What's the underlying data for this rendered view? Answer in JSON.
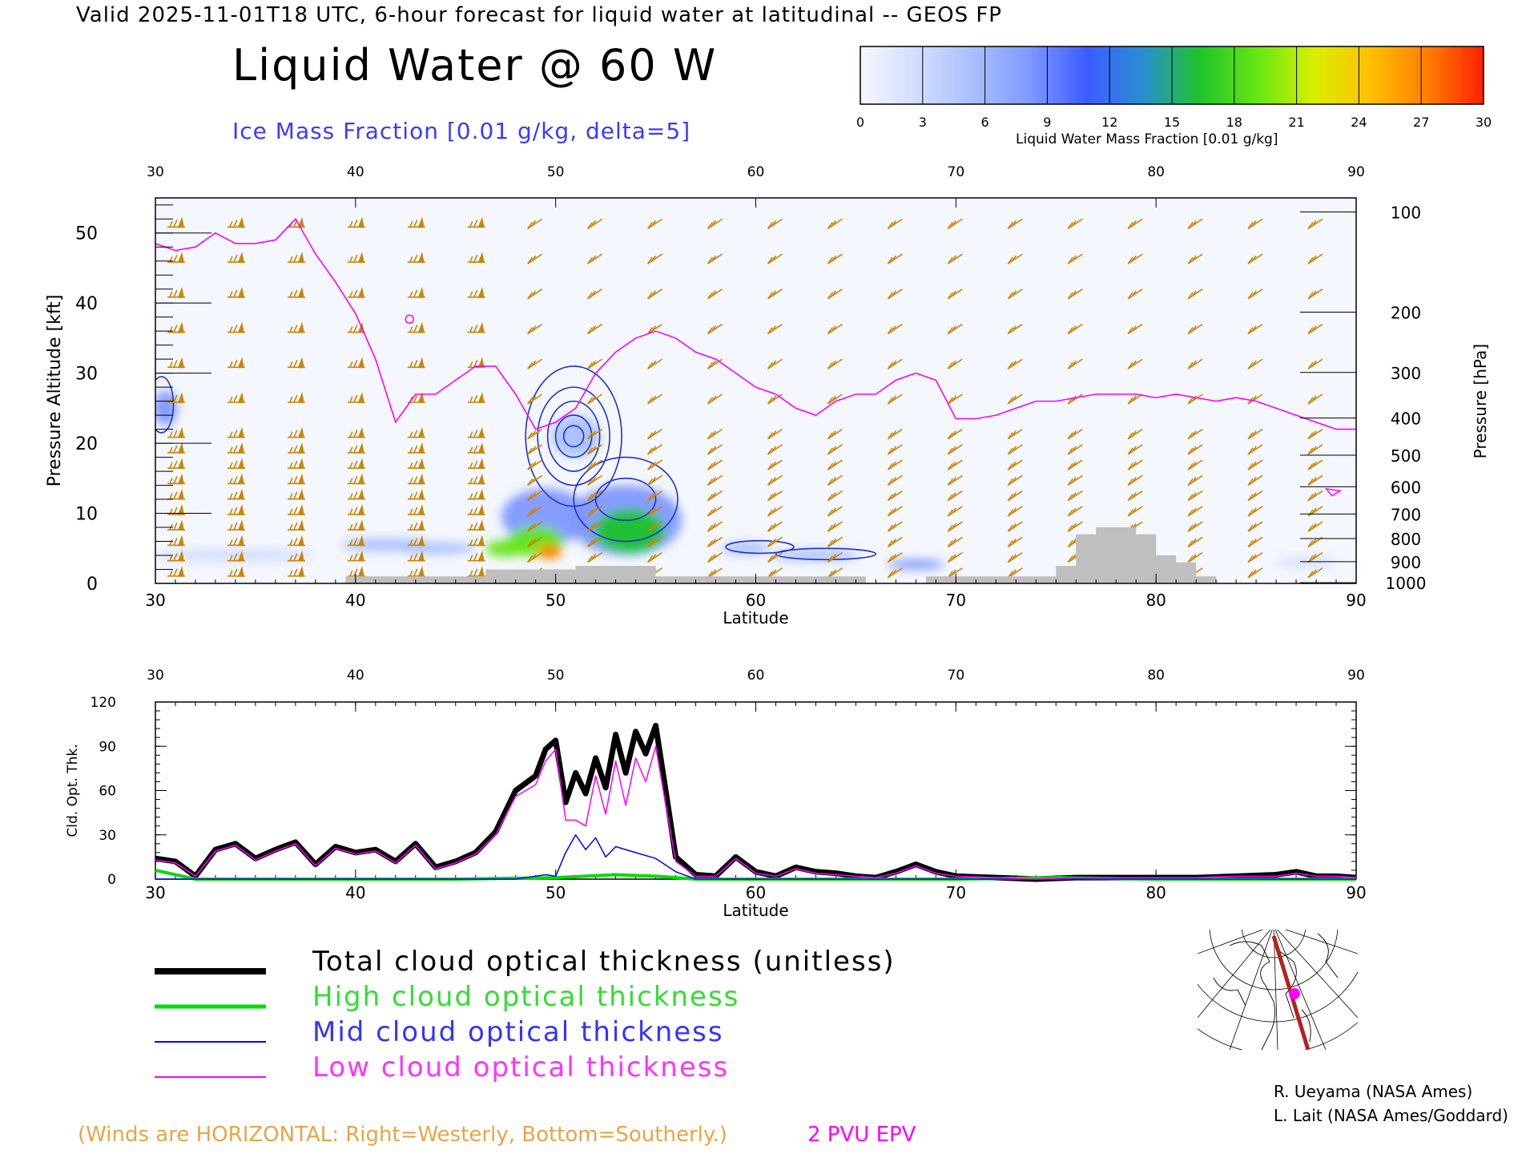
{
  "header": {
    "line": "Valid 2025-11-01T18 UTC, 6-hour forecast for liquid water at latitudinal -- GEOS FP",
    "title": "Liquid Water @ 60 W",
    "subtitle": "Ice Mass Fraction [0.01 g/kg, delta=5]"
  },
  "colorbar": {
    "ticks": [
      "0",
      "3",
      "6",
      "9",
      "12",
      "15",
      "18",
      "21",
      "24",
      "27",
      "30"
    ],
    "caption": "Liquid Water Mass Fraction [0.01 g/kg]",
    "colors": [
      "#f4f7ff",
      "#d2ddff",
      "#a8bfff",
      "#7f98ff",
      "#3c5cff",
      "#2a8fd0",
      "#1fc42a",
      "#66e614",
      "#d8f000",
      "#ffc000",
      "#ff7f00",
      "#ff2000"
    ]
  },
  "chart_data": [
    {
      "type": "heatmap",
      "x_axis_ticks": [
        "30",
        "40",
        "50",
        "60",
        "70",
        "80",
        "90"
      ],
      "xlabel": "Latitude",
      "xlim": [
        30,
        90
      ],
      "ylabel": "Pressure Altitude [kft]",
      "y_ticks": [
        "0",
        "10",
        "20",
        "30",
        "40",
        "50"
      ],
      "ylim": [
        0,
        55
      ],
      "right_axis_label": "Pressure [hPa]",
      "right_ticks": [
        {
          "label": "100",
          "kft": 53
        },
        {
          "label": "200",
          "kft": 38.7
        },
        {
          "label": "300",
          "kft": 30.1
        },
        {
          "label": "400",
          "kft": 23.6
        },
        {
          "label": "500",
          "kft": 18.3
        },
        {
          "label": "600",
          "kft": 13.8
        },
        {
          "label": "700",
          "kft": 9.9
        },
        {
          "label": "800",
          "kft": 6.4
        },
        {
          "label": "900",
          "kft": 3.1
        },
        {
          "label": "1000",
          "kft": 0.1
        }
      ],
      "epv_2pvu_line": [
        [
          30,
          48.5
        ],
        [
          31,
          47.5
        ],
        [
          32,
          48
        ],
        [
          33,
          50
        ],
        [
          34,
          48.5
        ],
        [
          35,
          48.5
        ],
        [
          36,
          49
        ],
        [
          37,
          52
        ],
        [
          38,
          47
        ],
        [
          39,
          43
        ],
        [
          40,
          38.5
        ],
        [
          41,
          32
        ],
        [
          42,
          23
        ],
        [
          43,
          27
        ],
        [
          44,
          27
        ],
        [
          45,
          29
        ],
        [
          46,
          31
        ],
        [
          47,
          31
        ],
        [
          48,
          27
        ],
        [
          49,
          22
        ],
        [
          50,
          23
        ],
        [
          51,
          25
        ],
        [
          52,
          30
        ],
        [
          53,
          33
        ],
        [
          54,
          35
        ],
        [
          55,
          36
        ],
        [
          56,
          35
        ],
        [
          57,
          33
        ],
        [
          58,
          32
        ],
        [
          59,
          30
        ],
        [
          60,
          28
        ],
        [
          61,
          27
        ],
        [
          62,
          25
        ],
        [
          63,
          24
        ],
        [
          64,
          26
        ],
        [
          65,
          27
        ],
        [
          66,
          27
        ],
        [
          67,
          29
        ],
        [
          68,
          30
        ],
        [
          69,
          29
        ],
        [
          70,
          23.5
        ],
        [
          71,
          23.5
        ],
        [
          72,
          24
        ],
        [
          73,
          25
        ],
        [
          74,
          26
        ],
        [
          75,
          26
        ],
        [
          76,
          26.5
        ],
        [
          77,
          27
        ],
        [
          78,
          27
        ],
        [
          79,
          27
        ],
        [
          80,
          26.5
        ],
        [
          81,
          27
        ],
        [
          82,
          26.5
        ],
        [
          83,
          26
        ],
        [
          84,
          26.5
        ],
        [
          85,
          26
        ],
        [
          86,
          25
        ],
        [
          87,
          24
        ],
        [
          88,
          23
        ],
        [
          89,
          22
        ],
        [
          90,
          22
        ]
      ],
      "terrain": [
        [
          30,
          0
        ],
        [
          39.5,
          0
        ],
        [
          39.5,
          1
        ],
        [
          46.5,
          1
        ],
        [
          46.5,
          2
        ],
        [
          48.5,
          2
        ],
        [
          48.5,
          2
        ],
        [
          51,
          2
        ],
        [
          51,
          2.5
        ],
        [
          55,
          2.5
        ],
        [
          55,
          1
        ],
        [
          65.5,
          1
        ],
        [
          65.5,
          0
        ],
        [
          68.5,
          0
        ],
        [
          68.5,
          1
        ],
        [
          75,
          1
        ],
        [
          75,
          2.5
        ],
        [
          76,
          2.5
        ],
        [
          76,
          7
        ],
        [
          77,
          7
        ],
        [
          77,
          8
        ],
        [
          79,
          8
        ],
        [
          79,
          7
        ],
        [
          80,
          7
        ],
        [
          80,
          4
        ],
        [
          81,
          4
        ],
        [
          81,
          3
        ],
        [
          82,
          3
        ],
        [
          82,
          1
        ],
        [
          83,
          1
        ],
        [
          83,
          0
        ],
        [
          90,
          0
        ]
      ],
      "liquid_water_blobs": [
        {
          "lat": 47.5,
          "kft": 5.0,
          "value": 19,
          "rx": 1.0,
          "ry": 1.2
        },
        {
          "lat": 49.0,
          "kft": 6.0,
          "value": 18,
          "rx": 1.4,
          "ry": 2.2
        },
        {
          "lat": 49.7,
          "kft": 4.5,
          "value": 27,
          "rx": 0.6,
          "ry": 1.0
        },
        {
          "lat": 53.7,
          "kft": 7.5,
          "value": 17,
          "rx": 1.8,
          "ry": 3.2
        },
        {
          "lat": 49.5,
          "kft": 9.5,
          "value": 9,
          "rx": 2.2,
          "ry": 4.0
        },
        {
          "lat": 53.5,
          "kft": 9.0,
          "value": 8,
          "rx": 2.8,
          "ry": 5.0
        },
        {
          "lat": 41.5,
          "kft": 5.5,
          "value": 6,
          "rx": 2.2,
          "ry": 0.9
        },
        {
          "lat": 44.0,
          "kft": 5.0,
          "value": 5,
          "rx": 2.0,
          "ry": 0.8
        },
        {
          "lat": 34.0,
          "kft": 4.0,
          "value": 4,
          "rx": 4.0,
          "ry": 0.9
        },
        {
          "lat": 59.5,
          "kft": 5.0,
          "value": 6,
          "rx": 1.2,
          "ry": 0.9
        },
        {
          "lat": 63.0,
          "kft": 4.0,
          "value": 5,
          "rx": 2.2,
          "ry": 0.8
        },
        {
          "lat": 68.0,
          "kft": 2.7,
          "value": 7,
          "rx": 1.4,
          "ry": 0.7
        },
        {
          "lat": 30.5,
          "kft": 25.0,
          "value": 8,
          "rx": 0.6,
          "ry": 2.5
        },
        {
          "lat": 51.0,
          "kft": 21.0,
          "value": 6,
          "rx": 1.2,
          "ry": 3.0
        },
        {
          "lat": 87.5,
          "kft": 3.0,
          "value": 4,
          "rx": 1.5,
          "ry": 0.7
        }
      ],
      "ice_contours": [
        {
          "lat": 50.9,
          "kft": 21.0,
          "rx": [
            0.5,
            0.9,
            1.3,
            1.8,
            2.4
          ],
          "ry": [
            1.5,
            3,
            5,
            7,
            10
          ]
        },
        {
          "lat": 53.5,
          "kft": 12.0,
          "rx": [
            1.5,
            2.6
          ],
          "ry": [
            3,
            6
          ]
        },
        {
          "lat": 30.3,
          "kft": 25.5,
          "rx": [
            0.6
          ],
          "ry": [
            4
          ]
        },
        {
          "lat": 60.2,
          "kft": 5.2,
          "rx": [
            1.7
          ],
          "ry": [
            0.9
          ]
        },
        {
          "lat": 63.5,
          "kft": 4.2,
          "rx": [
            2.5
          ],
          "ry": [
            0.8
          ]
        }
      ]
    },
    {
      "type": "line",
      "xlabel": "Latitude",
      "x_axis_ticks": [
        "30",
        "40",
        "50",
        "60",
        "70",
        "80",
        "90"
      ],
      "xlim": [
        30,
        90
      ],
      "ylabel": "Cld. Opt. Thk.",
      "y_ticks": [
        "0",
        "30",
        "60",
        "90",
        "120"
      ],
      "ylim": [
        0,
        120
      ],
      "series": [
        {
          "name": "Total cloud optical thickness (unitless)",
          "color": "#000000",
          "x": [
            30,
            31,
            32,
            33,
            34,
            35,
            36,
            37,
            38,
            39,
            40,
            41,
            42,
            43,
            44,
            45,
            46,
            47,
            48,
            49,
            49.5,
            50,
            50.5,
            51,
            51.5,
            52,
            52.5,
            53,
            53.5,
            54,
            54.5,
            55,
            55.5,
            56,
            57,
            58,
            59,
            60,
            61,
            62,
            63,
            64,
            65,
            66,
            67,
            68,
            69,
            70,
            72,
            74,
            76,
            78,
            80,
            82,
            84,
            86,
            87,
            88,
            89,
            90
          ],
          "y": [
            14,
            12,
            2,
            20,
            24,
            14,
            20,
            25,
            10,
            22,
            18,
            20,
            12,
            24,
            8,
            12,
            18,
            32,
            60,
            70,
            88,
            94,
            52,
            72,
            58,
            82,
            62,
            98,
            72,
            100,
            85,
            104,
            60,
            15,
            3,
            2,
            15,
            5,
            2,
            8,
            5,
            4,
            2,
            1,
            5,
            10,
            5,
            2,
            1,
            0,
            1,
            1,
            1,
            1,
            2,
            3,
            5,
            2,
            2,
            1
          ]
        },
        {
          "name": "High cloud optical thickness",
          "color": "#00dd00",
          "x": [
            30,
            31,
            32,
            35,
            40,
            45,
            50,
            53,
            55,
            56,
            57,
            60,
            65,
            70,
            75,
            80,
            85,
            90
          ],
          "y": [
            6,
            3,
            0,
            0,
            0,
            0,
            1,
            3,
            2,
            1,
            0,
            0,
            0,
            0,
            1,
            0,
            0,
            0
          ]
        },
        {
          "name": "Mid cloud optical thickness",
          "color": "#0000ff",
          "x": [
            30,
            45,
            48,
            49,
            49.5,
            50,
            50.5,
            51,
            51.5,
            52,
            52.5,
            53,
            54,
            55,
            56,
            57,
            60,
            70,
            90
          ],
          "y": [
            0,
            0,
            0,
            2,
            3,
            2,
            18,
            30,
            20,
            28,
            15,
            22,
            18,
            14,
            5,
            0,
            0,
            0,
            0
          ]
        },
        {
          "name": "Low cloud optical thickness",
          "color": "#ff00ff",
          "x": [
            30,
            31,
            32,
            33,
            34,
            35,
            36,
            37,
            38,
            39,
            40,
            41,
            42,
            43,
            44,
            45,
            46,
            47,
            48,
            49,
            49.5,
            50,
            50.5,
            51,
            51.5,
            52,
            52.5,
            53,
            53.5,
            54,
            54.5,
            55,
            55.5,
            56,
            57,
            58,
            59,
            60,
            61,
            62,
            63,
            64,
            65,
            66,
            67,
            68,
            69,
            70,
            72,
            74,
            76,
            78,
            80,
            82,
            84,
            86,
            87,
            88,
            89,
            90
          ],
          "y": [
            13,
            11,
            2,
            19,
            23,
            13,
            19,
            24,
            9,
            21,
            17,
            19,
            11,
            23,
            7,
            11,
            17,
            30,
            56,
            64,
            80,
            88,
            40,
            40,
            36,
            70,
            44,
            80,
            50,
            82,
            66,
            90,
            50,
            12,
            2,
            2,
            14,
            4,
            2,
            7,
            4,
            3,
            2,
            1,
            4,
            9,
            4,
            2,
            1,
            0,
            1,
            1,
            1,
            1,
            2,
            2,
            4,
            2,
            2,
            1
          ]
        }
      ]
    }
  ],
  "legend": {
    "total": "Total cloud optical thickness (unitless)",
    "high": "High cloud optical thickness",
    "mid": "Mid cloud optical thickness",
    "low": "Low cloud optical thickness"
  },
  "notes": {
    "winds": "(Winds are HORIZONTAL: Right=Westerly, Bottom=Southerly.)",
    "epv": "2 PVU EPV"
  },
  "credits": {
    "line1": "R. Ueyama (NASA Ames)",
    "line2": "L. Lait (NASA Ames/Goddard)"
  },
  "colors": {
    "wind_barbs": "#c8860a",
    "epv_line": "#ff00ff",
    "ice_contours": "#1f2fd8",
    "terrain": "#bfbfbf"
  }
}
